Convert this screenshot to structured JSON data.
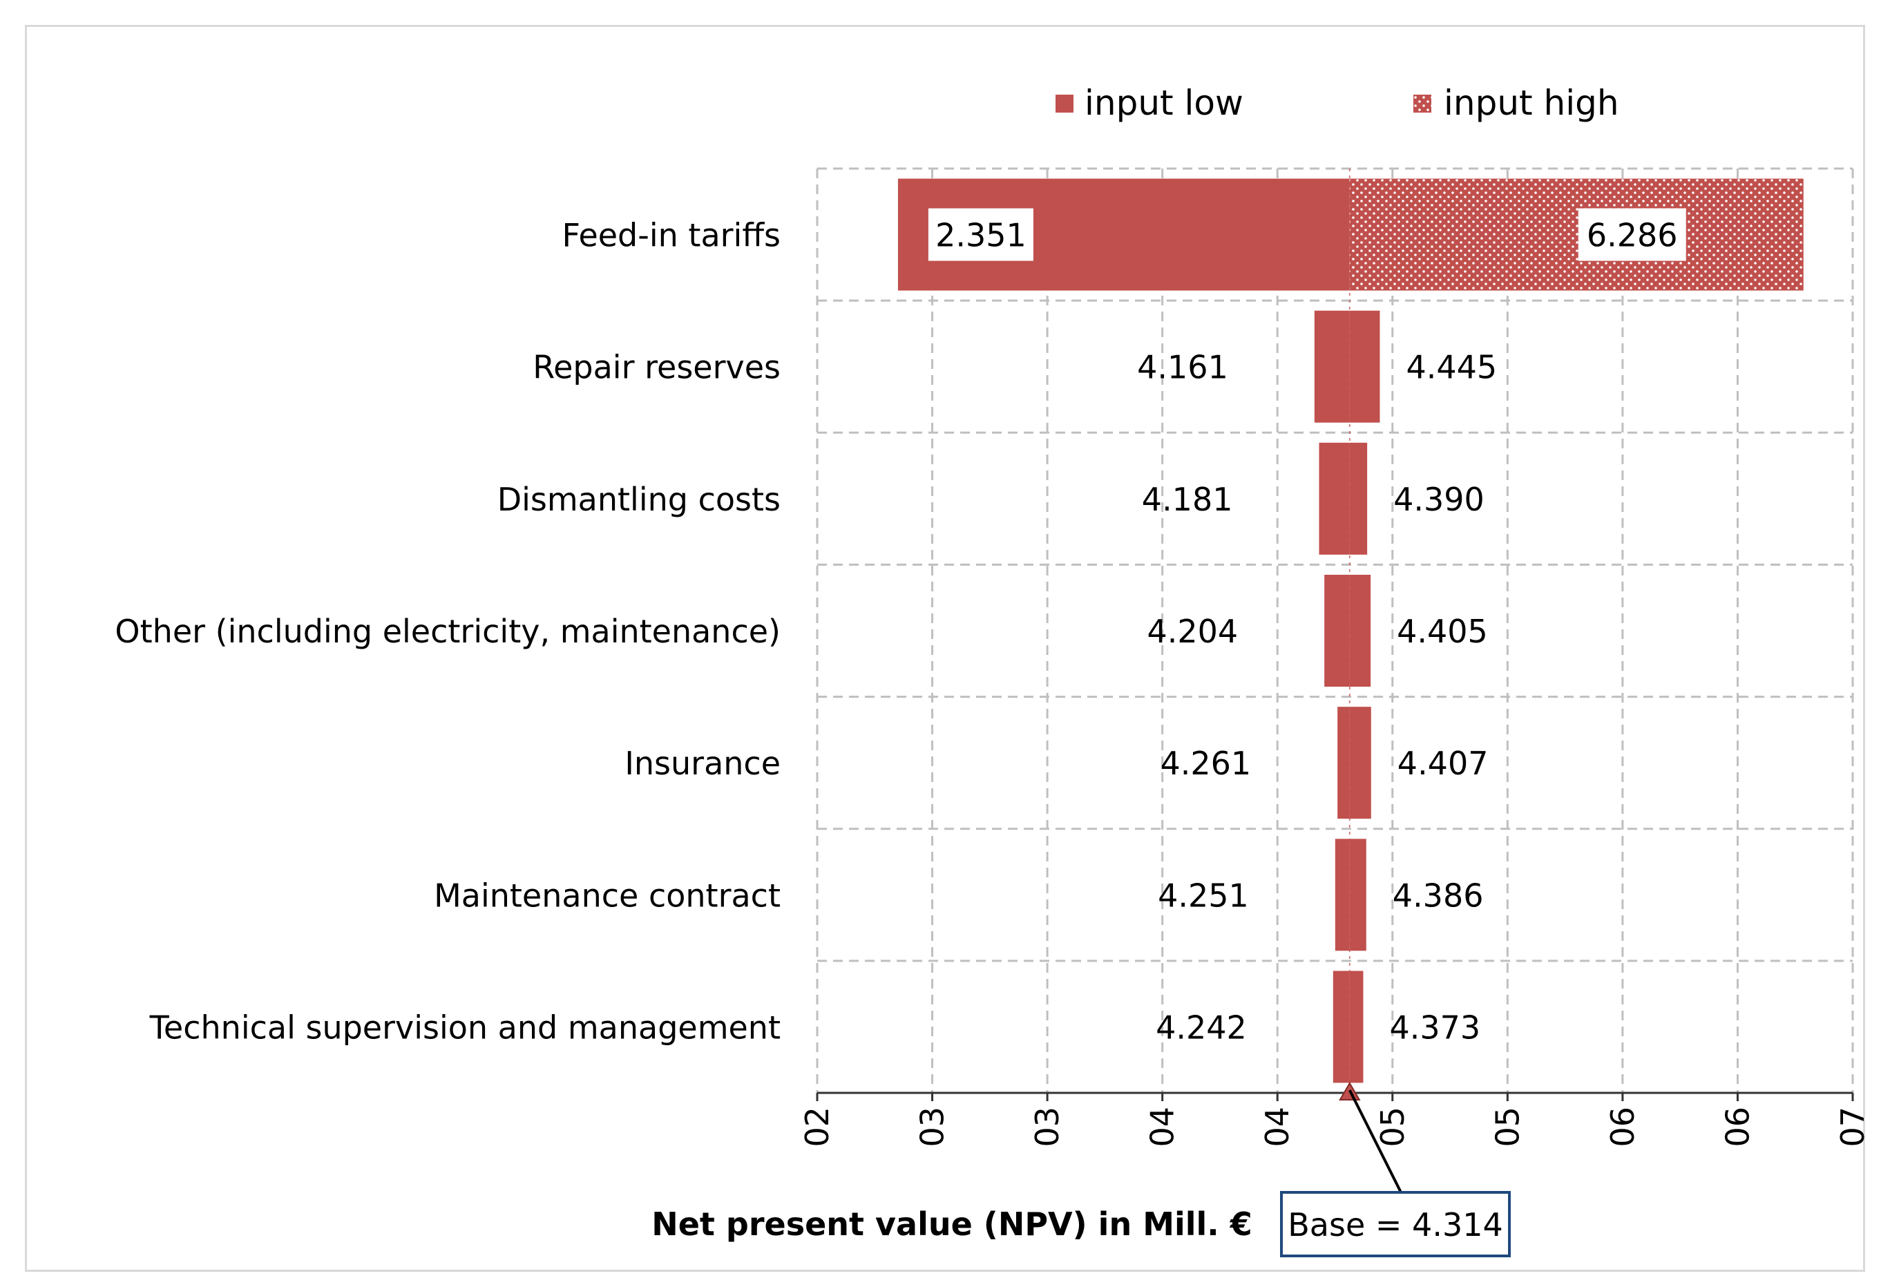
{
  "chart_data": {
    "type": "tornado",
    "title": "",
    "xlabel": "Net present value (NPV) in Mill. €",
    "ylabel": "",
    "xlim": [
      2.0,
      6.5
    ],
    "x_ticks": [
      {
        "value": 2.0,
        "label": "02"
      },
      {
        "value": 2.5,
        "label": "03"
      },
      {
        "value": 3.0,
        "label": "03"
      },
      {
        "value": 3.5,
        "label": "04"
      },
      {
        "value": 4.0,
        "label": "04"
      },
      {
        "value": 4.5,
        "label": "05"
      },
      {
        "value": 5.0,
        "label": "05"
      },
      {
        "value": 5.5,
        "label": "06"
      },
      {
        "value": 6.0,
        "label": "06"
      },
      {
        "value": 6.5,
        "label": "07"
      }
    ],
    "base": 4.314,
    "base_label": "Base = 4.314",
    "legend": {
      "position": "top-right",
      "items": [
        {
          "name": "input low",
          "pattern": "solid"
        },
        {
          "name": "input high",
          "pattern": "dotted"
        }
      ]
    },
    "series_colors": {
      "bar": "#c0504d",
      "dots": "#ffffff",
      "grid": "#bfbfbf",
      "axis": "#333333",
      "callout_border": "#1f497d"
    },
    "categories": [
      "Feed-in tariffs",
      "Repair reserves",
      "Dismantling costs",
      "Other (including electricity, maintenance)",
      "Insurance",
      "Maintenance contract",
      "Technical supervision and management"
    ],
    "series": [
      {
        "name": "input low",
        "values": [
          2.351,
          4.161,
          4.181,
          4.204,
          4.261,
          4.251,
          4.242
        ]
      },
      {
        "name": "input high",
        "values": [
          6.286,
          4.445,
          4.39,
          4.405,
          4.407,
          4.386,
          4.373
        ]
      }
    ],
    "bar_labels_low": [
      "2.351",
      "4.161",
      "4.181",
      "4.204",
      "4.261",
      "4.251",
      "4.242"
    ],
    "bar_labels_high": [
      "6.286",
      "4.445",
      "4.390",
      "4.405",
      "4.407",
      "4.386",
      "4.373"
    ]
  }
}
